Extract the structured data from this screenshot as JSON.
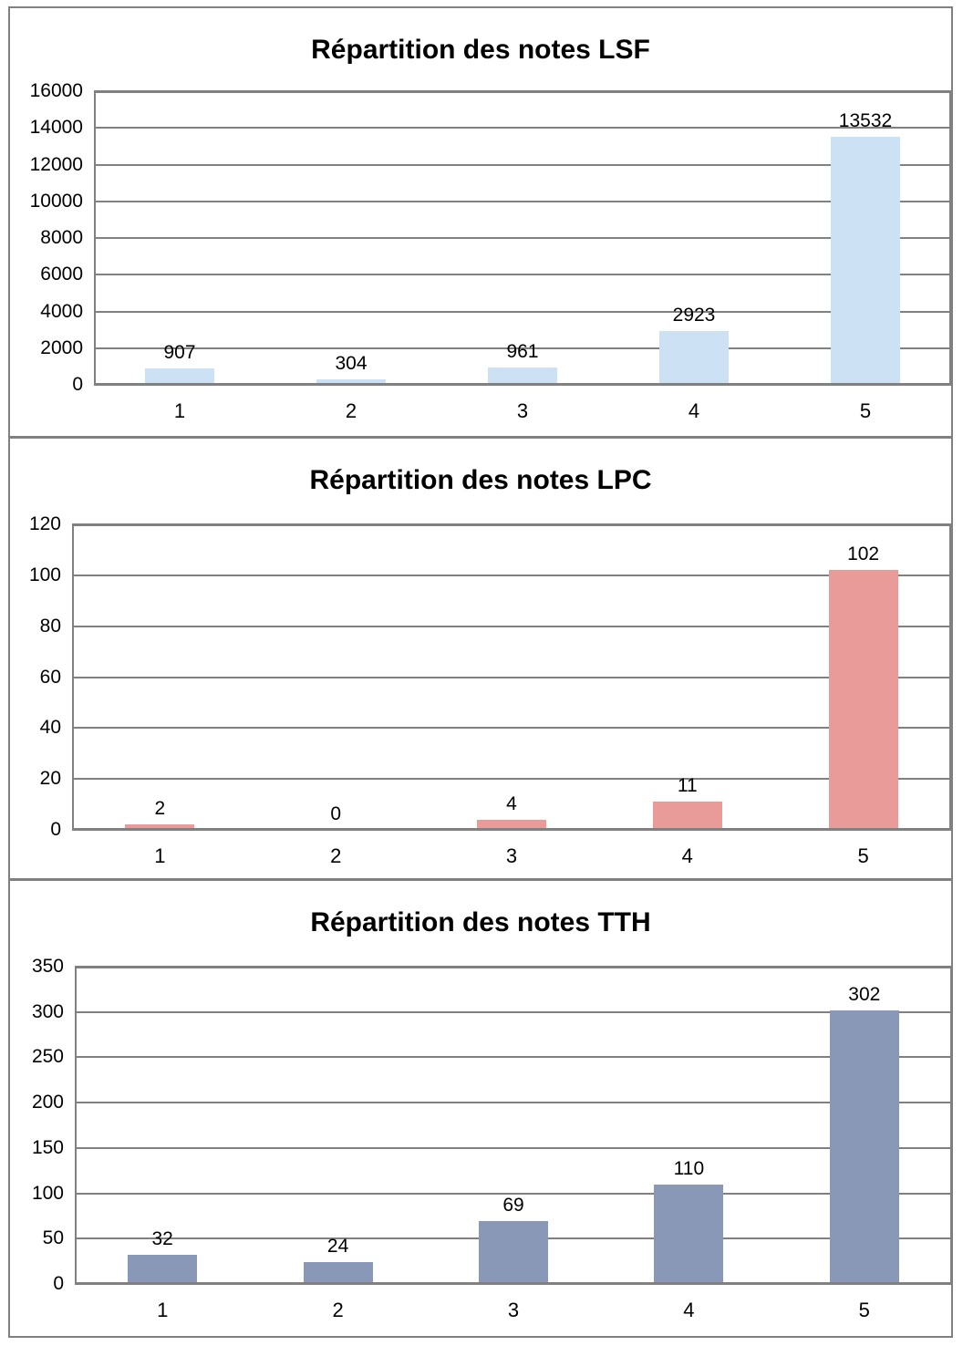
{
  "colors": {
    "grid": "#808080",
    "plot_border": "#808080",
    "outer_border": "#808080",
    "text": "#000000",
    "background": "#ffffff"
  },
  "chart_data": [
    {
      "type": "bar",
      "title": "Répartition des notes LSF",
      "categories": [
        "1",
        "2",
        "3",
        "4",
        "5"
      ],
      "values": [
        907,
        304,
        961,
        2923,
        13532
      ],
      "data_labels": [
        "907",
        "304",
        "961",
        "2923",
        "13532"
      ],
      "y_ticks": [
        0,
        2000,
        4000,
        6000,
        8000,
        10000,
        12000,
        14000,
        16000
      ],
      "ylim": [
        0,
        16000
      ],
      "xlabel": "",
      "ylabel": "",
      "grid": true,
      "legend": false,
      "bar_color": "#CCE1F4"
    },
    {
      "type": "bar",
      "title": "Répartition des notes LPC",
      "categories": [
        "1",
        "2",
        "3",
        "4",
        "5"
      ],
      "values": [
        2,
        0,
        4,
        11,
        102
      ],
      "data_labels": [
        "2",
        "0",
        "4",
        "11",
        "102"
      ],
      "y_ticks": [
        0,
        20,
        40,
        60,
        80,
        100,
        120
      ],
      "ylim": [
        0,
        120
      ],
      "xlabel": "",
      "ylabel": "",
      "grid": true,
      "legend": false,
      "bar_color": "#E99B9A"
    },
    {
      "type": "bar",
      "title": "Répartition des notes TTH",
      "categories": [
        "1",
        "2",
        "3",
        "4",
        "5"
      ],
      "values": [
        32,
        24,
        69,
        110,
        302
      ],
      "data_labels": [
        "32",
        "24",
        "69",
        "110",
        "302"
      ],
      "y_ticks": [
        0,
        50,
        100,
        150,
        200,
        250,
        300,
        350
      ],
      "ylim": [
        0,
        350
      ],
      "xlabel": "",
      "ylabel": "",
      "grid": true,
      "legend": false,
      "bar_color": "#8A98B7"
    }
  ]
}
